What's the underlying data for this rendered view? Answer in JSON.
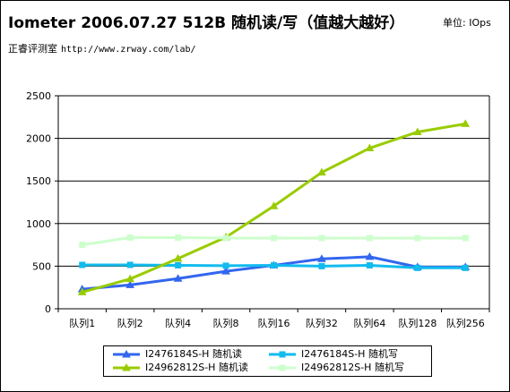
{
  "header": {
    "title": "Iometer 2006.07.27 512B 随机读/写（值越大越好）",
    "unit": "单位: IOps",
    "site_name": "正睿评测室",
    "site_url": "http://www.zrway.com/lab/"
  },
  "chart_data": {
    "type": "line",
    "categories": [
      "队列1",
      "队列2",
      "队列4",
      "队列8",
      "队列16",
      "队列32",
      "队列64",
      "队列128",
      "队列256"
    ],
    "ylim": [
      0,
      2500
    ],
    "yticks": [
      "0",
      "500",
      "1000",
      "1500",
      "2000",
      "2500"
    ],
    "grid": true,
    "legend_position": "bottom",
    "series": [
      {
        "name": "I2476184S-H 随机读",
        "color": "#3366ee",
        "marker": "triangle",
        "values": [
          230,
          280,
          355,
          440,
          510,
          585,
          610,
          490,
          490
        ]
      },
      {
        "name": "I2476184S-H 随机写",
        "color": "#11bbee",
        "marker": "square",
        "values": [
          515,
          515,
          510,
          505,
          510,
          500,
          510,
          480,
          480
        ]
      },
      {
        "name": "I24962812S-H 随机读",
        "color": "#99cc00",
        "marker": "triangle",
        "values": [
          195,
          350,
          590,
          840,
          1205,
          1600,
          1885,
          2075,
          2170
        ]
      },
      {
        "name": "I24962812S-H 随机写",
        "color": "#ccffcc",
        "marker": "square",
        "values": [
          750,
          835,
          835,
          830,
          830,
          830,
          830,
          830,
          830
        ]
      }
    ]
  }
}
